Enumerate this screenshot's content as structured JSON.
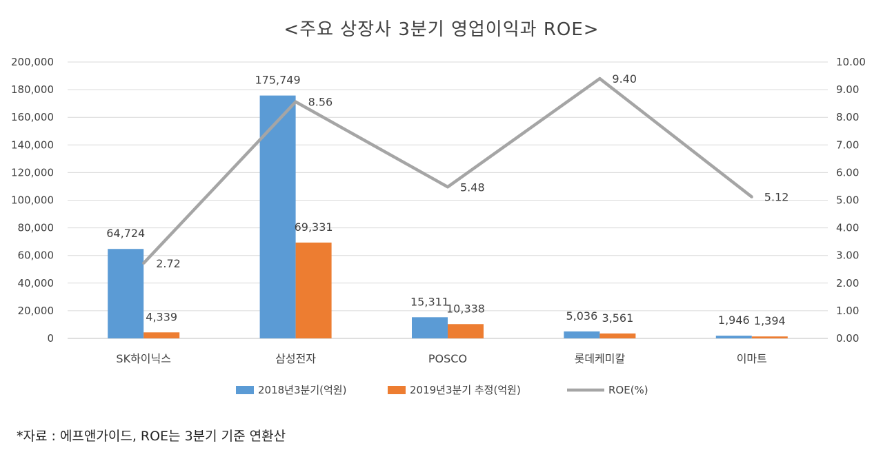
{
  "chart_data": {
    "type": "bar",
    "title": "<주요 상장사 3분기 영업이익과 ROE>",
    "categories": [
      "SK하이닉스",
      "삼성전자",
      "POSCO",
      "롯데케미칼",
      "이마트"
    ],
    "series": [
      {
        "name": "2018년3분기(억원)",
        "type": "bar",
        "axis": "left",
        "color": "#5B9BD5",
        "values": [
          64724,
          175749,
          15311,
          5036,
          1946
        ],
        "labels": [
          "64,724",
          "175,749",
          "15,311",
          "5,036",
          "1,946"
        ]
      },
      {
        "name": "2019년3분기 추정(억원)",
        "type": "bar",
        "axis": "left",
        "color": "#ED7D31",
        "values": [
          4339,
          69331,
          10338,
          3561,
          1394
        ],
        "labels": [
          "4,339",
          "69,331",
          "10,338",
          "3,561",
          "1,394"
        ]
      },
      {
        "name": "ROE(%)",
        "type": "line",
        "axis": "right",
        "color": "#A5A5A5",
        "values": [
          2.72,
          8.56,
          5.48,
          9.4,
          5.12
        ],
        "labels": [
          "2.72",
          "8.56",
          "5.48",
          "9.40",
          "5.12"
        ]
      }
    ],
    "y_left": {
      "min": 0,
      "max": 200000,
      "ticks": [
        "0",
        "20,000",
        "40,000",
        "60,000",
        "80,000",
        "100,000",
        "120,000",
        "140,000",
        "160,000",
        "180,000",
        "200,000"
      ]
    },
    "y_right": {
      "min": 0,
      "max": 10,
      "ticks": [
        "0.00",
        "1.00",
        "2.00",
        "3.00",
        "4.00",
        "5.00",
        "6.00",
        "7.00",
        "8.00",
        "9.00",
        "10.00"
      ]
    },
    "grid": true,
    "legend_position": "bottom"
  },
  "source_note": "*자료 : 에프앤가이드, ROE는 3분기 기준 연환산"
}
